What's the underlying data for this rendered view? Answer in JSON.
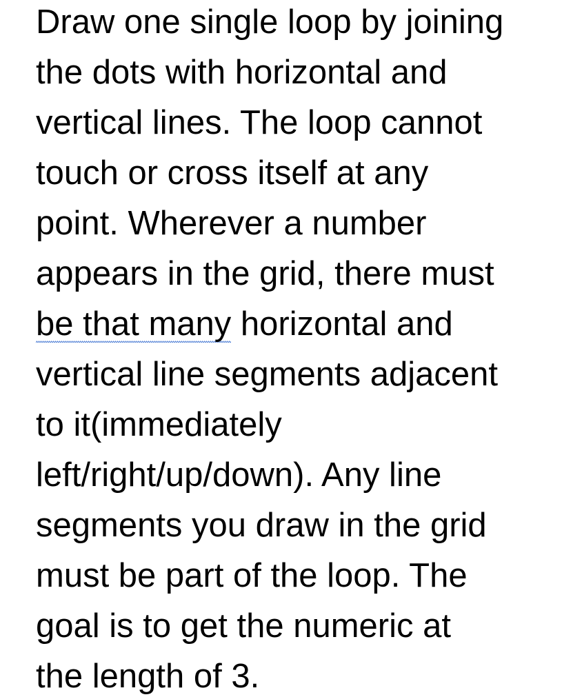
{
  "document": {
    "lines": [
      "Draw one single loop by joining",
      "the dots with horizontal and",
      "vertical lines. The loop cannot",
      "touch or cross itself at any",
      "point. Wherever a number",
      "appears in the grid, there must",
      "horizontal and",
      "vertical line segments adjacent",
      "to it(immediately",
      "left/right/up/down). Any line",
      "segments you draw in the grid",
      "must be part of the loop. The",
      "goal is to get the numeric at",
      "the length of 3."
    ],
    "flagged_phrase": "be that many"
  }
}
